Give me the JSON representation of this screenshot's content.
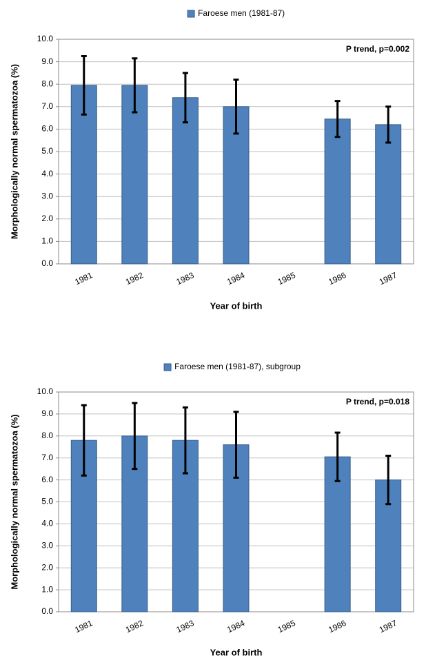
{
  "chart_data": [
    {
      "type": "bar",
      "annotation": "P trend, p=0.002",
      "x_label": "Year of birth",
      "y_label": "Morphologically normal spermatozoa (%)",
      "categories": [
        "1981",
        "1982",
        "1983",
        "1984",
        "1985",
        "1986",
        "1987"
      ],
      "series": [
        {
          "name": "Faroese men (1981-87)",
          "color": "#4f81bd",
          "values": [
            7.95,
            7.95,
            7.4,
            7.0,
            null,
            6.45,
            6.2
          ],
          "errors": [
            1.3,
            1.2,
            1.1,
            1.2,
            null,
            0.8,
            0.8
          ]
        }
      ],
      "ylim": [
        0,
        10
      ],
      "yticks": [
        {
          "value": 0,
          "label": "0.0"
        },
        {
          "value": 1,
          "label": "1.0"
        },
        {
          "value": 2,
          "label": "2.0"
        },
        {
          "value": 3,
          "label": "3.0"
        },
        {
          "value": 4,
          "label": "4.0"
        },
        {
          "value": 5,
          "label": "5.0"
        },
        {
          "value": 6,
          "label": "6.0"
        },
        {
          "value": 7,
          "label": "7.0"
        },
        {
          "value": 8,
          "label": "8.0"
        },
        {
          "value": 9,
          "label": "9.0"
        },
        {
          "value": 10,
          "label": "10.0"
        }
      ],
      "grid": true
    },
    {
      "type": "bar",
      "annotation": "P trend, p=0.018",
      "x_label": "Year of birth",
      "y_label": "Morphologically normal spermatozoa (%)",
      "categories": [
        "1981",
        "1982",
        "1983",
        "1984",
        "1985",
        "1986",
        "1987"
      ],
      "series": [
        {
          "name": "Faroese men (1981-87), subgroup",
          "color": "#4f81bd",
          "values": [
            7.8,
            8.0,
            7.8,
            7.6,
            null,
            7.05,
            6.0
          ],
          "errors": [
            1.6,
            1.5,
            1.5,
            1.5,
            null,
            1.1,
            1.1
          ]
        }
      ],
      "ylim": [
        0,
        10
      ],
      "yticks": [
        {
          "value": 0,
          "label": "0.0"
        },
        {
          "value": 1,
          "label": "1.0"
        },
        {
          "value": 2,
          "label": "2.0"
        },
        {
          "value": 3,
          "label": "3.0"
        },
        {
          "value": 4,
          "label": "4.0"
        },
        {
          "value": 5,
          "label": "5.0"
        },
        {
          "value": 6,
          "label": "6.0"
        },
        {
          "value": 7,
          "label": "7.0"
        },
        {
          "value": 8,
          "label": "8.0"
        },
        {
          "value": 9,
          "label": "9.0"
        },
        {
          "value": 10,
          "label": "10.0"
        }
      ],
      "grid": true
    }
  ]
}
